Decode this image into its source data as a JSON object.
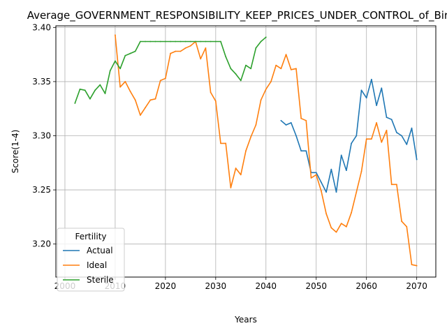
{
  "chart_data": {
    "type": "line",
    "title": "Average_GOVERNMENT_RESPONSIBILITY_KEEP_PRICES_UNDER_CONTROL_of_Births",
    "xlabel": "Years",
    "ylabel": "Score(1-4)",
    "xlim": [
      1998.2,
      2073.8
    ],
    "ylim": [
      3.1695,
      3.4015
    ],
    "xticks": [
      2000,
      2010,
      2020,
      2030,
      2040,
      2050,
      2060,
      2070
    ],
    "xtick_labels": [
      "2000",
      "2010",
      "2020",
      "2030",
      "2040",
      "2050",
      "2060",
      "2070"
    ],
    "yticks": [
      3.2,
      3.25,
      3.3,
      3.35,
      3.4
    ],
    "ytick_labels": [
      "3.20",
      "3.25",
      "3.30",
      "3.35",
      "3.40"
    ],
    "grid": true,
    "legend": {
      "title": "Fertility",
      "position": "lower-left"
    },
    "series": [
      {
        "name": "Actual",
        "color": "#1f77b4",
        "x": [
          2043,
          2044,
          2045,
          2046,
          2047,
          2048,
          2049,
          2050,
          2051,
          2052,
          2053,
          2054,
          2055,
          2056,
          2057,
          2058,
          2059,
          2060,
          2061,
          2062,
          2063,
          2064,
          2065,
          2066,
          2067,
          2068,
          2069,
          2070
        ],
        "y": [
          3.314,
          3.31,
          3.312,
          3.3,
          3.286,
          3.286,
          3.266,
          3.266,
          3.257,
          3.248,
          3.269,
          3.248,
          3.282,
          3.268,
          3.293,
          3.3,
          3.342,
          3.335,
          3.352,
          3.328,
          3.344,
          3.317,
          3.315,
          3.303,
          3.3,
          3.292,
          3.307,
          3.278
        ]
      },
      {
        "name": "Ideal",
        "color": "#ff7f0e",
        "x": [
          2010,
          2011,
          2012,
          2013,
          2014,
          2015,
          2016,
          2017,
          2018,
          2019,
          2020,
          2021,
          2022,
          2023,
          2024,
          2025,
          2026,
          2027,
          2028,
          2029,
          2030,
          2031,
          2032,
          2033,
          2034,
          2035,
          2036,
          2037,
          2038,
          2039,
          2040,
          2041,
          2042,
          2043,
          2044,
          2045,
          2046,
          2047,
          2048,
          2049,
          2050,
          2051,
          2052,
          2053,
          2054,
          2055,
          2056,
          2057,
          2058,
          2059,
          2060,
          2061,
          2062,
          2063,
          2064,
          2065,
          2066,
          2067,
          2068,
          2069,
          2070
        ],
        "y": [
          3.393,
          3.345,
          3.35,
          3.341,
          3.333,
          3.319,
          3.326,
          3.333,
          3.334,
          3.351,
          3.353,
          3.376,
          3.378,
          3.378,
          3.381,
          3.383,
          3.387,
          3.371,
          3.381,
          3.34,
          3.332,
          3.293,
          3.293,
          3.252,
          3.27,
          3.264,
          3.286,
          3.299,
          3.31,
          3.333,
          3.343,
          3.35,
          3.365,
          3.362,
          3.375,
          3.361,
          3.362,
          3.316,
          3.314,
          3.261,
          3.264,
          3.249,
          3.228,
          3.215,
          3.211,
          3.219,
          3.216,
          3.229,
          3.248,
          3.267,
          3.297,
          3.297,
          3.312,
          3.294,
          3.305,
          3.255,
          3.255,
          3.221,
          3.216,
          3.181,
          3.18
        ]
      },
      {
        "name": "Sterile",
        "color": "#2ca02c",
        "x": [
          2002,
          2003,
          2004,
          2005,
          2006,
          2007,
          2008,
          2009,
          2010,
          2011,
          2012,
          2013,
          2014,
          2015,
          2016,
          2017,
          2018,
          2019,
          2020,
          2021,
          2022,
          2023,
          2024,
          2025,
          2026,
          2027,
          2028,
          2029,
          2030,
          2031,
          2032,
          2033,
          2034,
          2035,
          2036,
          2037,
          2038,
          2039,
          2040
        ],
        "y": [
          3.33,
          3.343,
          3.342,
          3.334,
          3.342,
          3.347,
          3.339,
          3.36,
          3.369,
          3.362,
          3.374,
          3.376,
          3.378,
          3.387,
          3.387,
          3.387,
          3.387,
          3.387,
          3.387,
          3.387,
          3.387,
          3.387,
          3.387,
          3.387,
          3.387,
          3.387,
          3.387,
          3.387,
          3.387,
          3.387,
          3.373,
          3.362,
          3.357,
          3.351,
          3.365,
          3.362,
          3.381,
          3.387,
          3.391
        ]
      }
    ]
  }
}
